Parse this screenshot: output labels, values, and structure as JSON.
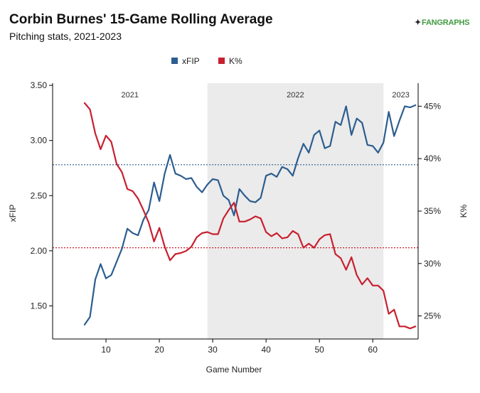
{
  "header": {
    "title": "Corbin Burnes' 15-Game Rolling Average",
    "subtitle": "Pitching stats, 2021-2023",
    "logo_text": "FANGRAPHS"
  },
  "chart_data": {
    "type": "line",
    "xlabel": "Game Number",
    "ylabel_left": "xFIP",
    "ylabel_right": "K%",
    "x_ticks": [
      10,
      20,
      30,
      40,
      50,
      60
    ],
    "xlim": [
      0,
      68.5
    ],
    "ylim_left": [
      1.2,
      3.52
    ],
    "y_ticks_left": [
      "1.50",
      "2.00",
      "2.50",
      "3.00",
      "3.50"
    ],
    "ylim_right": [
      22.8,
      47.2
    ],
    "y_ticks_right": [
      "25%",
      "30%",
      "35%",
      "40%",
      "45%"
    ],
    "legend_position": "top-center",
    "seasons": [
      {
        "label": "2021",
        "start": 0,
        "end": 29,
        "shaded": false
      },
      {
        "label": "2022",
        "start": 29,
        "end": 62,
        "shaded": true
      },
      {
        "label": "2023",
        "start": 62,
        "end": 68.5,
        "shaded": false
      }
    ],
    "reference_lines": [
      {
        "axis": "left",
        "value": 2.78,
        "color": "#2c5d8f"
      },
      {
        "axis": "right",
        "value": 31.5,
        "color": "#c8202f"
      }
    ],
    "x": [
      6,
      7,
      8,
      9,
      10,
      11,
      12,
      13,
      14,
      15,
      16,
      17,
      18,
      19,
      20,
      21,
      22,
      23,
      24,
      25,
      26,
      27,
      28,
      29,
      30,
      31,
      32,
      33,
      34,
      35,
      36,
      37,
      38,
      39,
      40,
      41,
      42,
      43,
      44,
      45,
      46,
      47,
      48,
      49,
      50,
      51,
      52,
      53,
      54,
      55,
      56,
      57,
      58,
      59,
      60,
      61,
      62,
      63,
      64,
      65,
      66,
      67,
      68
    ],
    "series": [
      {
        "name": "xFIP",
        "axis": "left",
        "color": "#2c5d8f",
        "values": [
          1.33,
          1.4,
          1.74,
          1.88,
          1.75,
          1.78,
          1.9,
          2.02,
          2.2,
          2.16,
          2.14,
          2.28,
          2.37,
          2.62,
          2.45,
          2.7,
          2.87,
          2.7,
          2.68,
          2.65,
          2.66,
          2.58,
          2.53,
          2.6,
          2.65,
          2.64,
          2.5,
          2.46,
          2.32,
          2.56,
          2.5,
          2.45,
          2.44,
          2.48,
          2.68,
          2.7,
          2.67,
          2.76,
          2.74,
          2.68,
          2.84,
          2.97,
          2.89,
          3.05,
          3.09,
          2.93,
          2.95,
          3.17,
          3.14,
          3.31,
          3.05,
          3.2,
          3.16,
          2.96,
          2.95,
          2.89,
          2.98,
          3.26,
          3.04,
          3.18,
          3.31,
          3.3,
          3.32
        ]
      },
      {
        "name": "K%",
        "axis": "right",
        "color": "#c8202f",
        "values": [
          45.3,
          44.7,
          42.4,
          40.9,
          42.2,
          41.6,
          39.5,
          38.7,
          37.1,
          36.9,
          36.2,
          35.1,
          33.9,
          32.1,
          33.4,
          31.6,
          30.3,
          30.9,
          31.0,
          31.2,
          31.6,
          32.5,
          32.9,
          33.0,
          32.8,
          32.8,
          34.3,
          35.1,
          35.8,
          34.0,
          34.0,
          34.2,
          34.5,
          34.3,
          33.0,
          32.6,
          32.9,
          32.4,
          32.5,
          33.1,
          32.8,
          31.5,
          31.9,
          31.5,
          32.3,
          32.7,
          32.8,
          30.9,
          30.5,
          29.4,
          30.6,
          28.9,
          28.0,
          28.6,
          27.9,
          27.9,
          27.4,
          25.2,
          25.6,
          24.0,
          24.0,
          23.8,
          24.0
        ]
      }
    ]
  }
}
